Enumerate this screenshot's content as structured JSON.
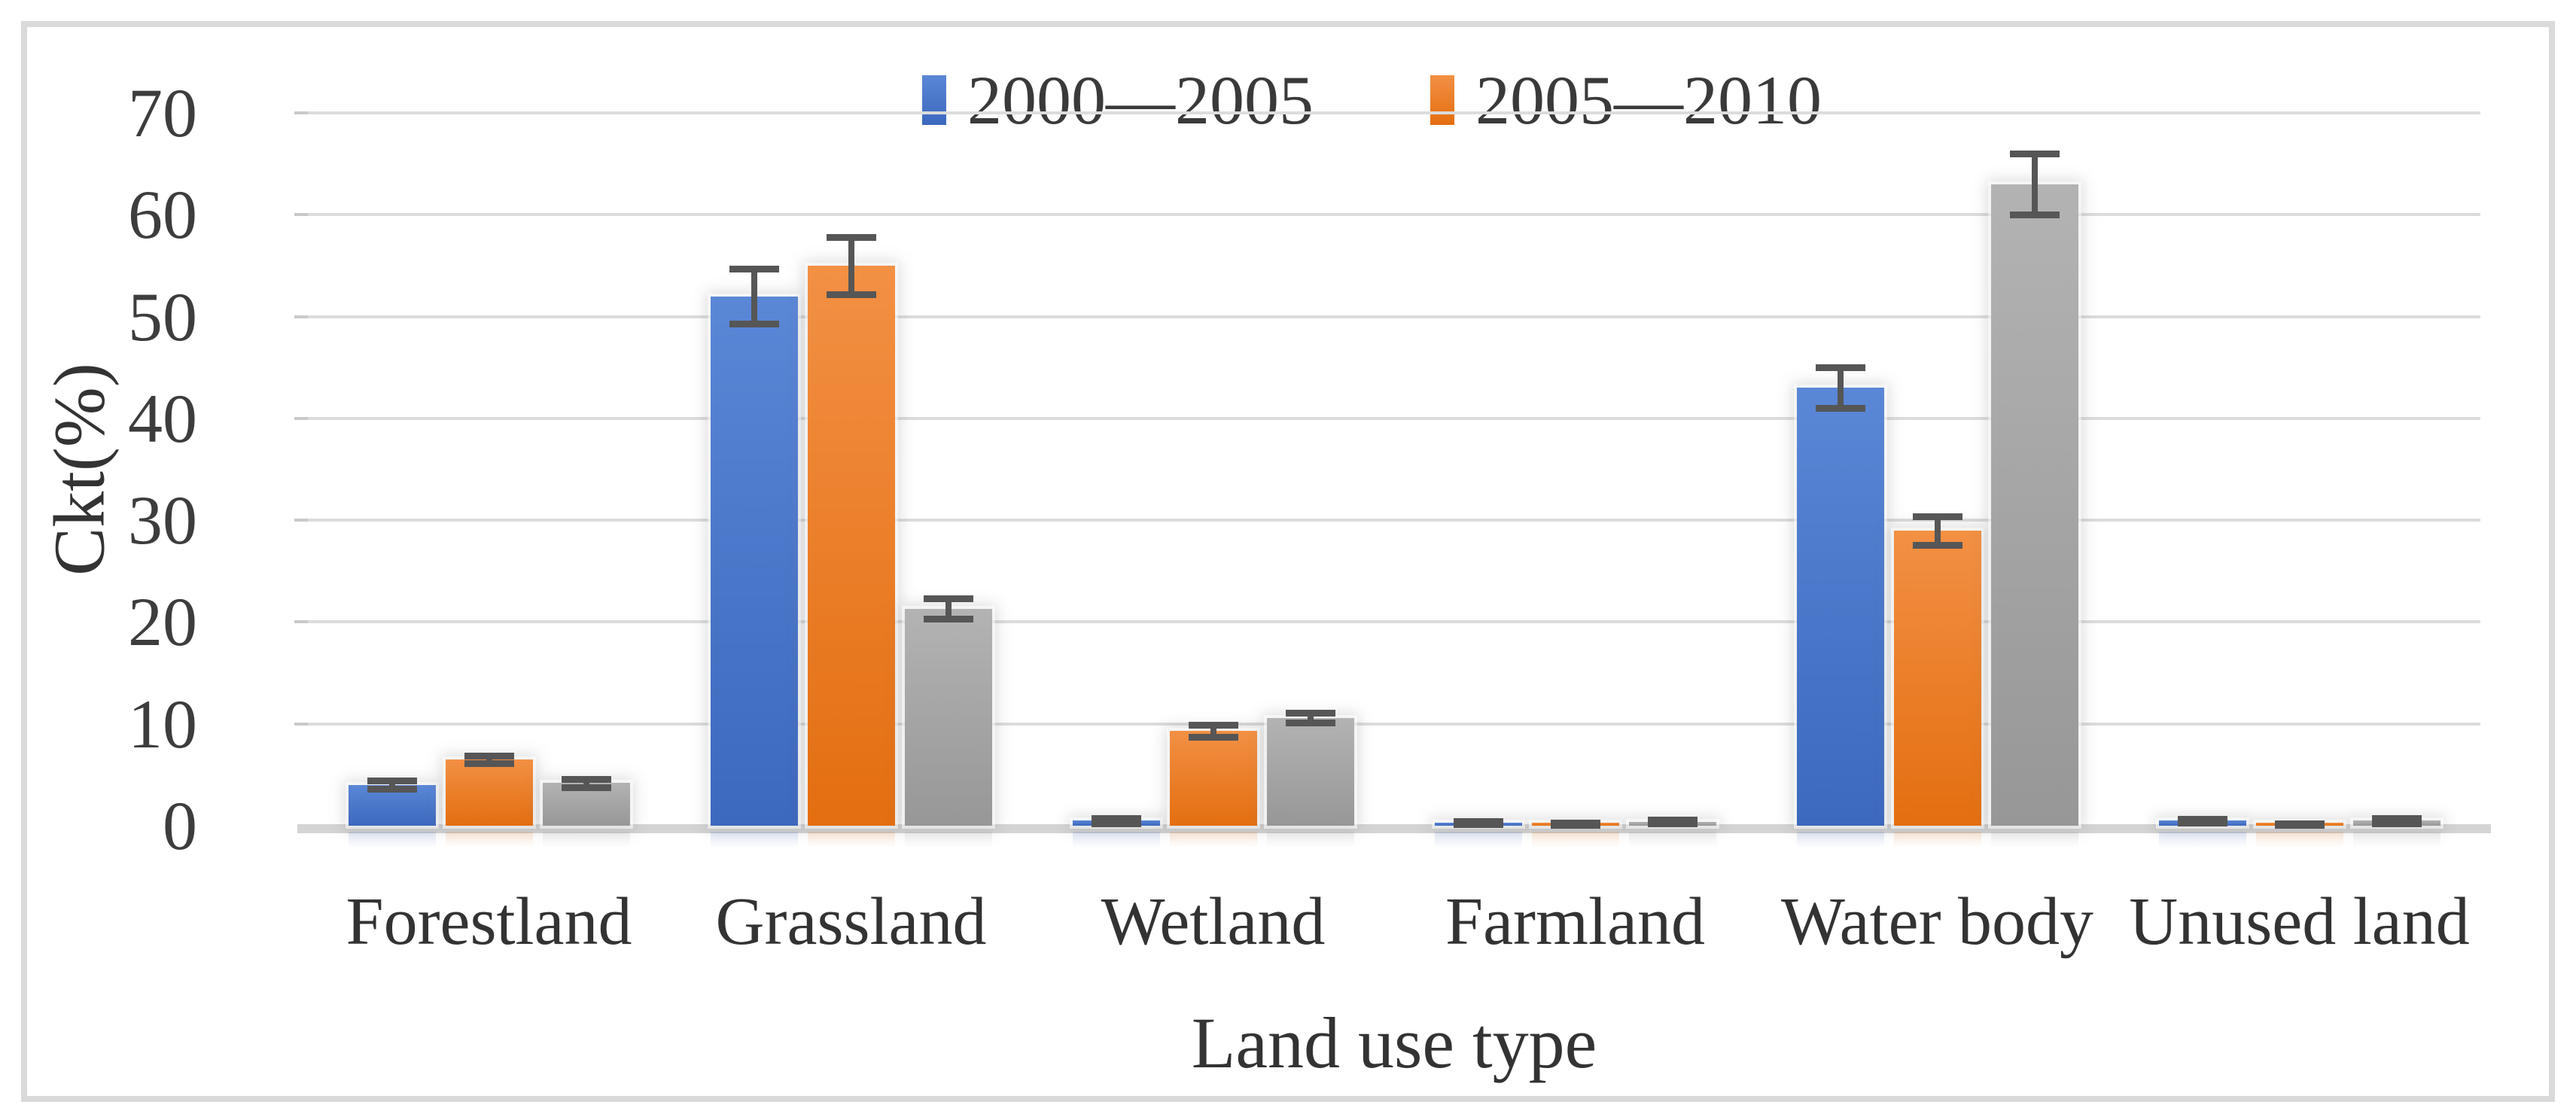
{
  "figure": {
    "border_color": "#dadada",
    "background": "#ffffff"
  },
  "chart_data": {
    "type": "bar",
    "title": "",
    "xlabel": "Land use type",
    "ylabel": "Ckt(%)",
    "ylim": [
      0,
      70
    ],
    "ytick_step": 10,
    "yticks": [
      0,
      10,
      20,
      30,
      40,
      50,
      60,
      70
    ],
    "grid": true,
    "legend_position": "top-center",
    "categories": [
      "Forestland",
      "Grassland",
      "Wetland",
      "Farmland",
      "Water body",
      "Unused land"
    ],
    "series": [
      {
        "name": "2000—2005",
        "in_legend": true,
        "color_top": "#5b87d7",
        "color_bottom": "#3c68be",
        "values": [
          4.0,
          52.0,
          0.5,
          0.3,
          43.0,
          0.5
        ],
        "errors": [
          0.4,
          2.7,
          0.25,
          0.15,
          2.0,
          0.2
        ]
      },
      {
        "name": "2005—2010",
        "in_legend": true,
        "color_top": "#f29044",
        "color_bottom": "#e46e10",
        "values": [
          6.5,
          55.0,
          9.3,
          0.2,
          29.0,
          0.15
        ],
        "errors": [
          0.4,
          2.8,
          0.6,
          0.1,
          1.4,
          0.1
        ]
      },
      {
        "name": "",
        "in_legend": false,
        "color_top": "#b3b3b3",
        "color_bottom": "#979797",
        "values": [
          4.2,
          21.3,
          10.6,
          0.4,
          63.0,
          0.5
        ],
        "errors": [
          0.4,
          1.0,
          0.5,
          0.2,
          3.0,
          0.25
        ]
      }
    ],
    "error_bar_color": "#565656",
    "gridline_color": "#dcdcdc"
  }
}
